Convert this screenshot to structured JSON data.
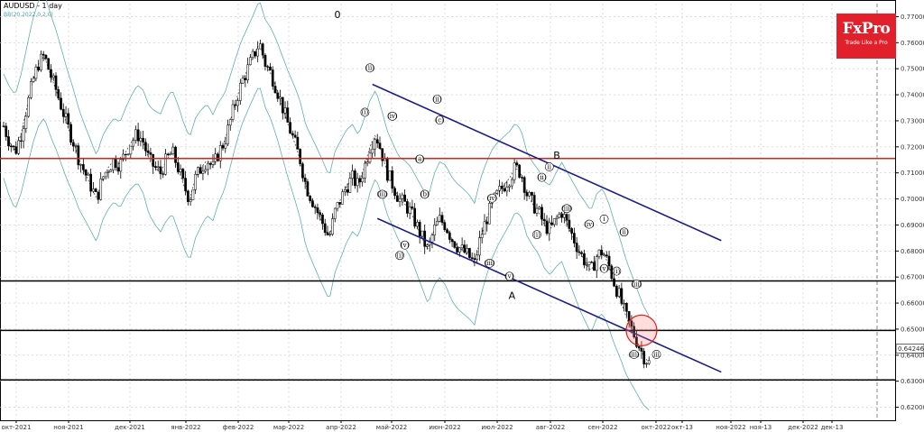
{
  "chart_data": {
    "type": "candlestick",
    "title": "AUDUSD - 1 day",
    "subtitle": "BB(20,2022,0,2,0)",
    "ylim": [
      0.615,
      0.775
    ],
    "y_ticks": [
      "0.77000",
      "0.76000",
      "0.75000",
      "0.74000",
      "0.73000",
      "0.72000",
      "0.71000",
      "0.70000",
      "0.69000",
      "0.68000",
      "0.67000",
      "0.66000",
      "0.65000",
      "0.64000",
      "0.63000",
      "0.62000"
    ],
    "x_ticks": [
      "окт-2021",
      "ноя-2021",
      "дек-2021",
      "янв-2022",
      "фев-2022",
      "мар-2022",
      "апр-2022",
      "май-2022",
      "июн-2022",
      "июл-2022",
      "авг-2022",
      "сен-2022",
      "окт-2022",
      "окт-13",
      "ноя-2022",
      "ноя-13",
      "дек-2022",
      "дек-13"
    ],
    "current_price": "0.64246",
    "horizontal_levels": [
      {
        "value": 0.7155,
        "color": "#e0201b"
      },
      {
        "value": 0.6685,
        "color": "#000000"
      },
      {
        "value": 0.6495,
        "color": "#000000"
      },
      {
        "value": 0.6305,
        "color": "#000000"
      }
    ],
    "series": [
      {
        "name": "AUDUSD",
        "close_path": [
          0.728,
          0.722,
          0.718,
          0.725,
          0.735,
          0.745,
          0.752,
          0.755,
          0.748,
          0.742,
          0.735,
          0.728,
          0.722,
          0.715,
          0.71,
          0.705,
          0.7,
          0.708,
          0.712,
          0.715,
          0.713,
          0.718,
          0.722,
          0.725,
          0.722,
          0.715,
          0.712,
          0.71,
          0.715,
          0.718,
          0.712,
          0.705,
          0.7,
          0.708,
          0.712,
          0.715,
          0.712,
          0.718,
          0.722,
          0.73,
          0.738,
          0.745,
          0.75,
          0.755,
          0.76,
          0.752,
          0.748,
          0.742,
          0.735,
          0.728,
          0.722,
          0.715,
          0.705,
          0.7,
          0.695,
          0.69,
          0.685,
          0.695,
          0.7,
          0.705,
          0.708,
          0.705,
          0.712,
          0.72,
          0.725,
          0.718,
          0.71,
          0.705,
          0.7,
          0.698,
          0.695,
          0.69,
          0.685,
          0.68,
          0.688,
          0.692,
          0.69,
          0.685,
          0.682,
          0.68,
          0.678,
          0.675,
          0.685,
          0.692,
          0.698,
          0.702,
          0.705,
          0.708,
          0.712,
          0.71,
          0.702,
          0.698,
          0.695,
          0.69,
          0.688,
          0.692,
          0.695,
          0.69,
          0.685,
          0.68,
          0.676,
          0.672,
          0.678,
          0.68,
          0.675,
          0.668,
          0.662,
          0.655,
          0.65,
          0.645,
          0.64,
          0.637
        ]
      }
    ]
  },
  "branding": {
    "brand": "FxPro",
    "tagline": "Trade Like a Pro"
  },
  "wave_labels": [
    "0",
    "B",
    "A",
    "(i)",
    "(ii)",
    "(iii)",
    "(iv)",
    "(v)",
    "(a)",
    "(b)",
    "(c)",
    "(i)",
    "(ii)",
    "(iii)",
    "(iv)",
    "(v)",
    "(i)",
    "(ii)",
    "(iii)",
    "(iv)",
    "(v)",
    "(i)",
    "(ii)",
    "(iii)",
    "(iii)",
    "i",
    "ii",
    "iii"
  ]
}
